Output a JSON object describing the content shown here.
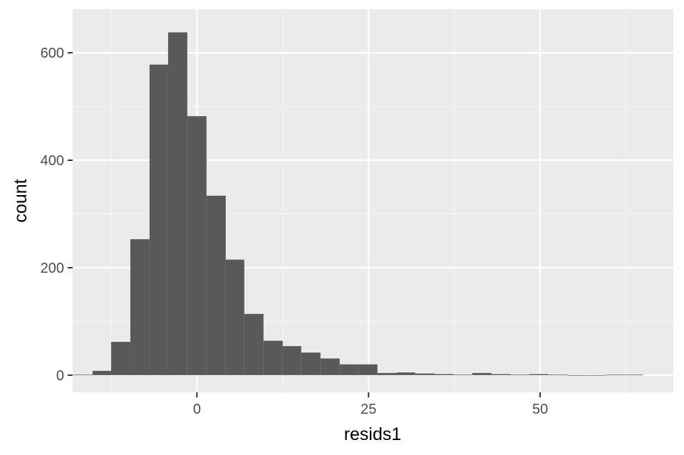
{
  "chart_data": {
    "type": "bar",
    "subtype": "histogram",
    "title": "",
    "xlabel": "resids1",
    "ylabel": "count",
    "xlim": [
      -18.1,
      69.4
    ],
    "ylim": [
      -32,
      681
    ],
    "x_ticks": [
      0,
      25,
      50
    ],
    "y_ticks": [
      0,
      200,
      400,
      600
    ],
    "x_tick_labels": [
      "0",
      "25",
      "50"
    ],
    "y_tick_labels": [
      "0",
      "200",
      "400",
      "600"
    ],
    "grid": true,
    "legend": "none",
    "bin_width": 2.77,
    "bins": [
      {
        "start": -18.0,
        "end": -15.2,
        "count": 1
      },
      {
        "start": -15.2,
        "end": -12.5,
        "count": 8
      },
      {
        "start": -12.5,
        "end": -9.7,
        "count": 62
      },
      {
        "start": -9.7,
        "end": -6.9,
        "count": 253
      },
      {
        "start": -6.9,
        "end": -4.2,
        "count": 578
      },
      {
        "start": -4.2,
        "end": -1.4,
        "count": 638
      },
      {
        "start": -1.4,
        "end": 1.4,
        "count": 482
      },
      {
        "start": 1.4,
        "end": 4.2,
        "count": 334
      },
      {
        "start": 4.2,
        "end": 6.9,
        "count": 215
      },
      {
        "start": 6.9,
        "end": 9.7,
        "count": 114
      },
      {
        "start": 9.7,
        "end": 12.5,
        "count": 64
      },
      {
        "start": 12.5,
        "end": 15.2,
        "count": 54
      },
      {
        "start": 15.2,
        "end": 18.0,
        "count": 42
      },
      {
        "start": 18.0,
        "end": 20.8,
        "count": 31
      },
      {
        "start": 20.8,
        "end": 23.5,
        "count": 20
      },
      {
        "start": 23.5,
        "end": 26.3,
        "count": 20
      },
      {
        "start": 26.3,
        "end": 29.1,
        "count": 4
      },
      {
        "start": 29.1,
        "end": 31.8,
        "count": 5
      },
      {
        "start": 31.8,
        "end": 34.6,
        "count": 3
      },
      {
        "start": 34.6,
        "end": 37.4,
        "count": 2
      },
      {
        "start": 37.4,
        "end": 40.1,
        "count": 1
      },
      {
        "start": 40.1,
        "end": 42.9,
        "count": 4
      },
      {
        "start": 42.9,
        "end": 45.7,
        "count": 2
      },
      {
        "start": 45.7,
        "end": 48.4,
        "count": 1
      },
      {
        "start": 48.4,
        "end": 51.2,
        "count": 2
      },
      {
        "start": 51.2,
        "end": 54.0,
        "count": 1
      },
      {
        "start": 54.0,
        "end": 56.7,
        "count": 0
      },
      {
        "start": 56.7,
        "end": 59.5,
        "count": 0
      },
      {
        "start": 59.5,
        "end": 62.3,
        "count": 1
      },
      {
        "start": 62.3,
        "end": 65.0,
        "count": 1
      }
    ],
    "colors": {
      "bar_fill": "#595959",
      "panel_background": "#ebebeb",
      "grid_major": "#ffffff",
      "grid_minor": "#f5f5f5",
      "tick_label": "#4d4d4d",
      "tick_mark": "#333333",
      "axis_title": "#000000"
    }
  }
}
